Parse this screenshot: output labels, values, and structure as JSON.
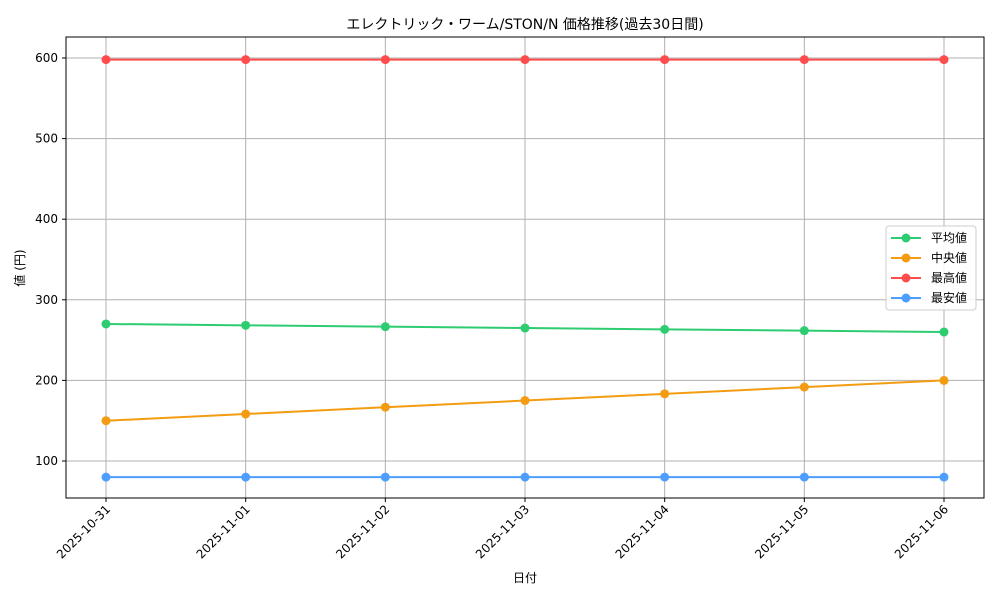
{
  "chart_data": {
    "type": "line",
    "title": "エレクトリック・ワーム/STON/N 価格推移(過去30日間)",
    "xlabel": "日付",
    "ylabel": "値 (円)",
    "categories": [
      "2025-10-31",
      "2025-11-01",
      "2025-11-02",
      "2025-11-03",
      "2025-11-04",
      "2025-11-05",
      "2025-11-06"
    ],
    "yticks": [
      100,
      200,
      300,
      400,
      500,
      600
    ],
    "ylim": [
      53,
      625
    ],
    "grid": true,
    "legend_position": "center right",
    "series": [
      {
        "name": "平均値",
        "color": "#2ecc71",
        "values": [
          270,
          268.3,
          266.7,
          265,
          263.3,
          261.7,
          260
        ]
      },
      {
        "name": "中央値",
        "color": "#f39c12",
        "values": [
          150,
          158.3,
          166.7,
          175,
          183.3,
          191.7,
          200
        ]
      },
      {
        "name": "最高値",
        "color": "#ff4d4d",
        "values": [
          598,
          598,
          598,
          598,
          598,
          598,
          598
        ]
      },
      {
        "name": "最安値",
        "color": "#4d9eff",
        "values": [
          80,
          80,
          80,
          80,
          80,
          80,
          80
        ]
      }
    ]
  }
}
